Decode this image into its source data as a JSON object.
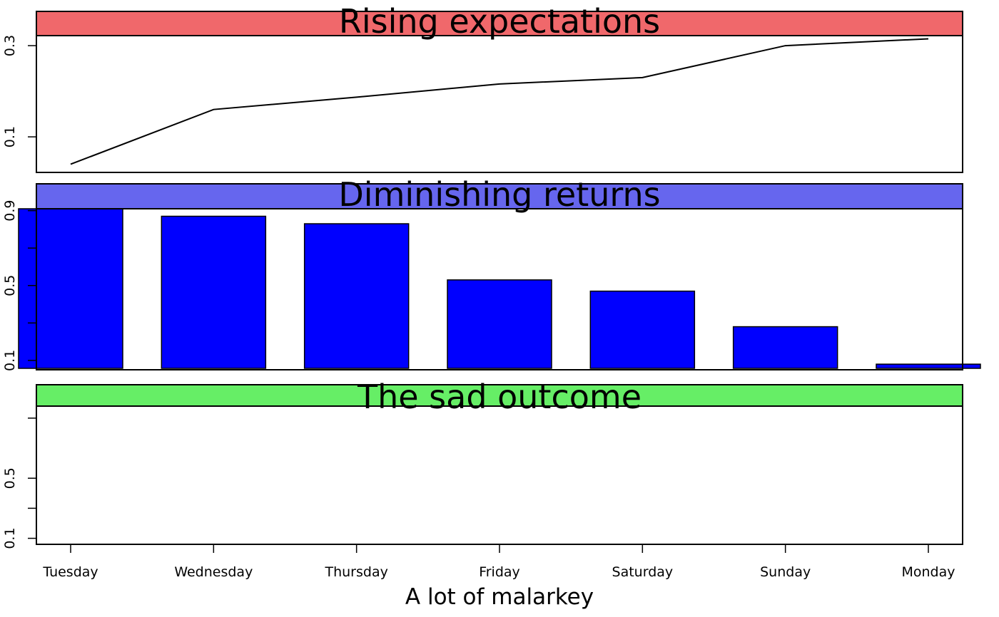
{
  "chart_data": {
    "type": "multi-panel",
    "xlabel": "A lot of malarkey",
    "categories": [
      "Tuesday",
      "Wednesday",
      "Thursday",
      "Friday",
      "Saturday",
      "Sunday",
      "Monday"
    ],
    "panels": [
      {
        "title": "Rising expectations",
        "type": "line",
        "strip_color": "#F0686B",
        "values": [
          0.04,
          0.16,
          0.187,
          0.216,
          0.23,
          0.3,
          0.315
        ],
        "ylim": [
          0.022,
          0.322
        ],
        "yticks": [
          0.1,
          0.3
        ],
        "yminor": []
      },
      {
        "title": "Diminishing returns",
        "type": "bar",
        "strip_color": "#6666EE",
        "bar_color": "#0000FF",
        "values": [
          0.92,
          0.87,
          0.83,
          0.53,
          0.47,
          0.28,
          0.08
        ],
        "ylim": [
          0.05,
          0.91
        ],
        "yticks": [
          0.1,
          0.5,
          0.9
        ],
        "yminor": [
          0.3,
          0.7
        ]
      },
      {
        "title": "The sad outcome",
        "type": "empty",
        "strip_color": "#66EE66",
        "values": [],
        "ylim": [
          0.06,
          0.98
        ],
        "yticks": [
          0.1,
          0.5
        ],
        "yminor": [
          0.3,
          0.9
        ]
      }
    ]
  }
}
